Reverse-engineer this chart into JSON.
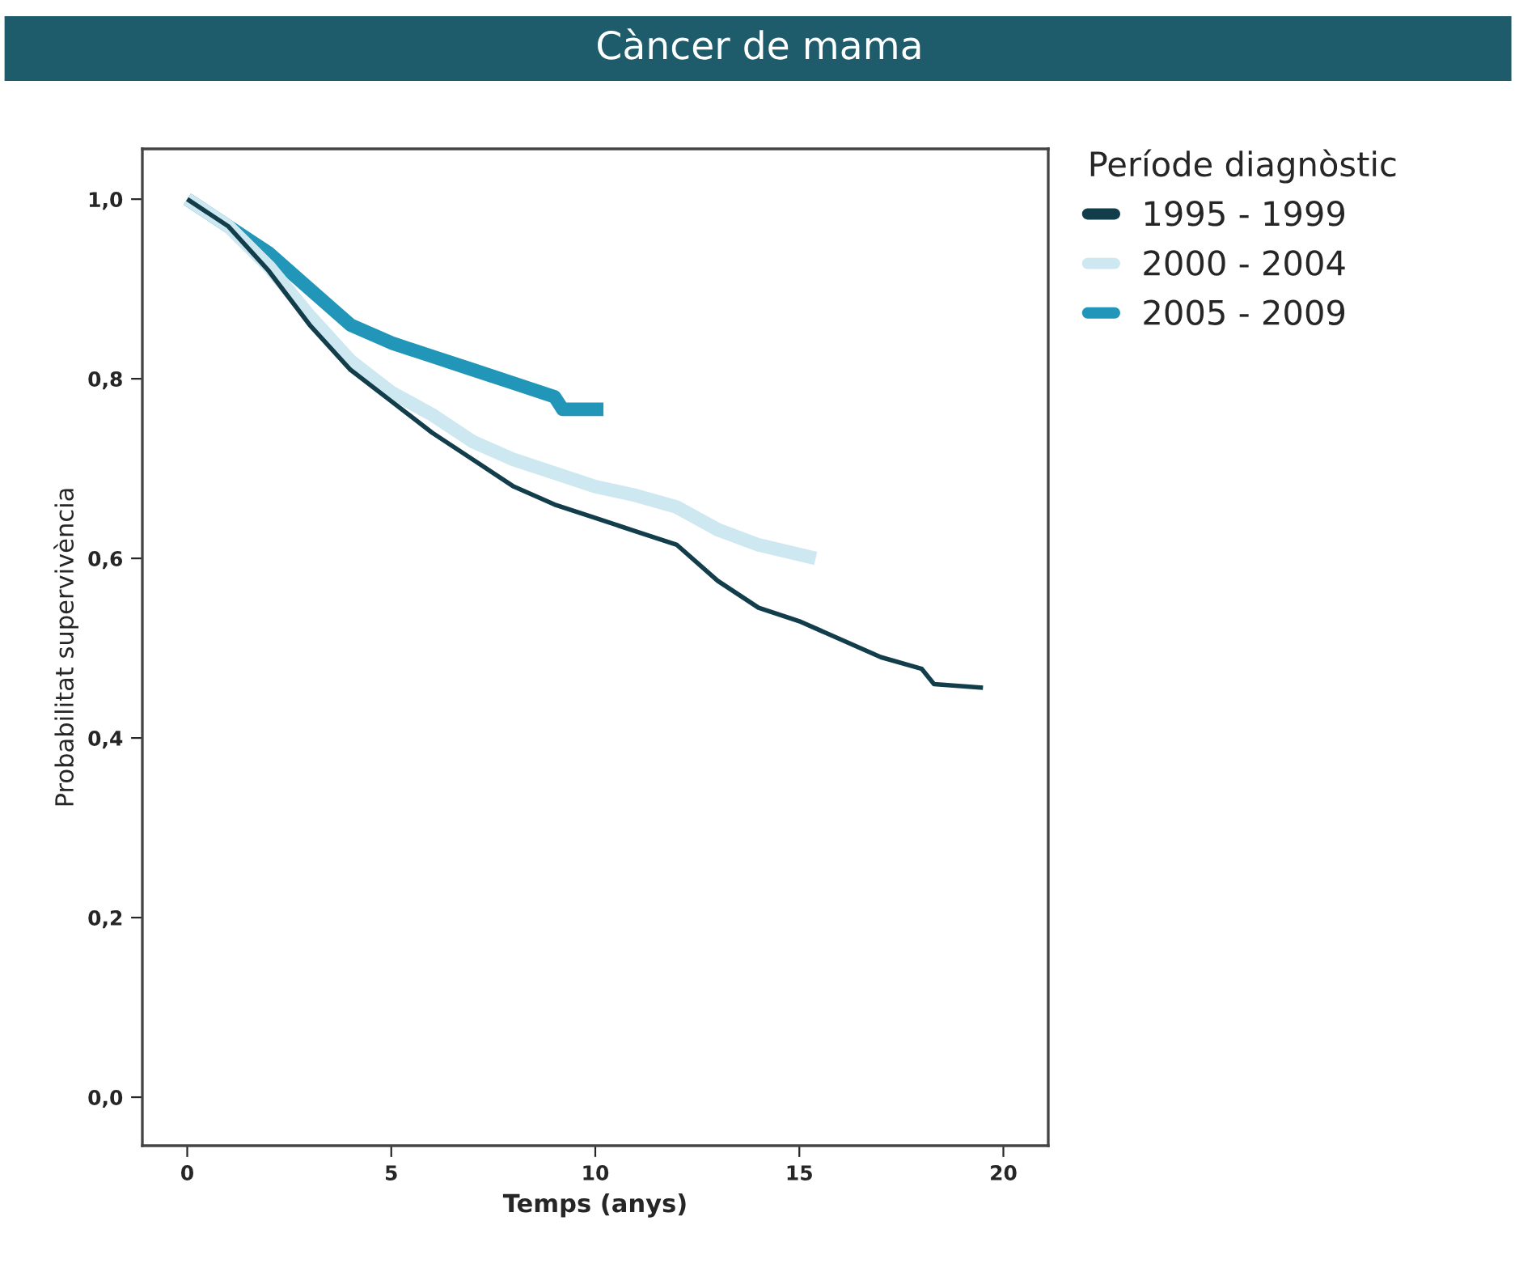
{
  "chart_data": {
    "type": "line",
    "title": "Càncer de mama",
    "xlabel": "Temps (anys)",
    "ylabel": "Probabilitat supervivència",
    "legend_title": "Període diagnòstic",
    "legend": "top right",
    "grid": false,
    "xlim": [
      -1.1,
      21.1
    ],
    "ylim": [
      -0.054,
      1.056
    ],
    "xticks": [
      0,
      5,
      10,
      15,
      20
    ],
    "yticks": [
      {
        "value": 0.0,
        "label": "0,0"
      },
      {
        "value": 0.2,
        "label": "0,2"
      },
      {
        "value": 0.4,
        "label": "0,4"
      },
      {
        "value": 0.6,
        "label": "0,6"
      },
      {
        "value": 0.8,
        "label": "0,8"
      },
      {
        "value": 1.0,
        "label": "1,0"
      }
    ],
    "series": [
      {
        "name": "1995 - 1999",
        "color": "#123d4a",
        "x": [
          0,
          1,
          2,
          3,
          4,
          5,
          6,
          7,
          8,
          9,
          10,
          11,
          12,
          13,
          14,
          15,
          16,
          17,
          18,
          18.3,
          19.5
        ],
        "values": [
          1.0,
          0.97,
          0.92,
          0.86,
          0.81,
          0.775,
          0.74,
          0.71,
          0.68,
          0.66,
          0.645,
          0.63,
          0.615,
          0.575,
          0.545,
          0.53,
          0.51,
          0.49,
          0.477,
          0.46,
          0.456
        ]
      },
      {
        "name": "2000 - 2004",
        "color": "#cde8f0",
        "x": [
          0,
          1,
          2,
          3,
          4,
          5,
          6,
          7,
          8,
          9,
          10,
          11,
          12,
          13,
          14,
          15.4
        ],
        "values": [
          1.0,
          0.97,
          0.925,
          0.87,
          0.82,
          0.785,
          0.76,
          0.73,
          0.71,
          0.695,
          0.68,
          0.67,
          0.657,
          0.632,
          0.615,
          0.6
        ]
      },
      {
        "name": "2005 - 2009",
        "color": "#2196b8",
        "x": [
          0,
          1,
          2,
          3,
          4,
          5,
          6,
          7,
          8,
          9,
          9.2,
          10.2
        ],
        "values": [
          1.0,
          0.97,
          0.94,
          0.9,
          0.86,
          0.84,
          0.825,
          0.81,
          0.795,
          0.78,
          0.766,
          0.766
        ]
      }
    ]
  }
}
